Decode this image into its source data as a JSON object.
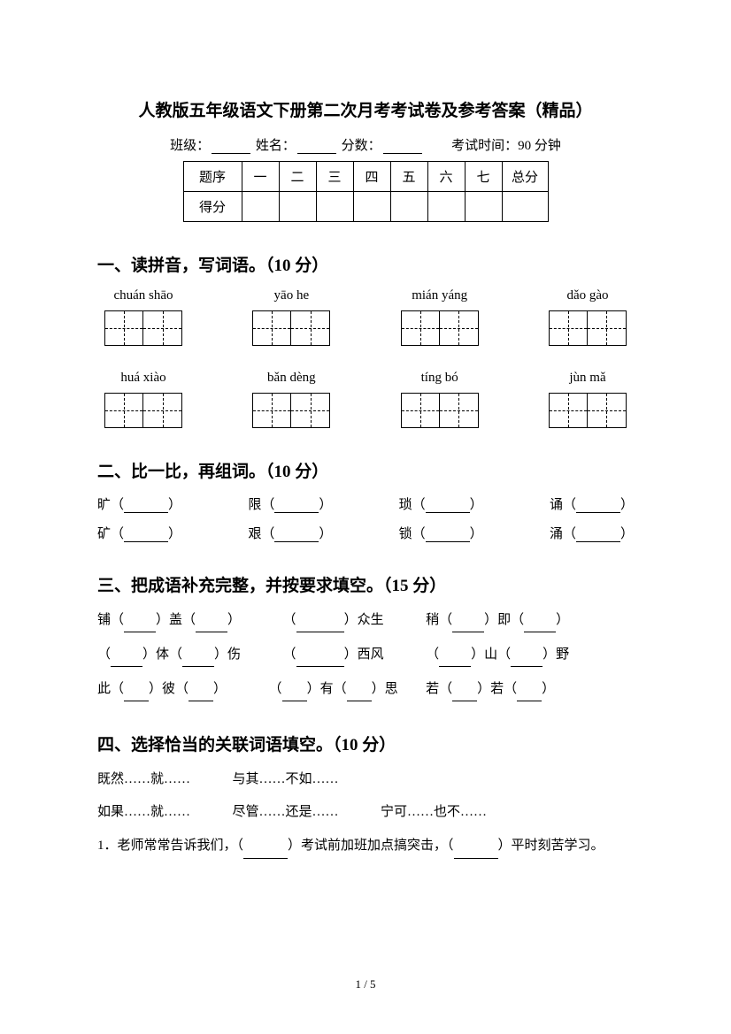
{
  "title": "人教版五年级语文下册第二次月考考试卷及参考答案（精品）",
  "info": {
    "class_label": "班级：",
    "name_label": "姓名：",
    "score_label": "分数：",
    "time_label": "考试时间：90 分钟"
  },
  "score_table": {
    "row1_label": "题序",
    "row2_label": "得分",
    "cols": [
      "一",
      "二",
      "三",
      "四",
      "五",
      "六",
      "七"
    ],
    "total": "总分"
  },
  "section1": {
    "title": "一、读拼音，写词语。（10 分）",
    "row1": [
      "chuán shāo",
      "yāo he",
      "mián yáng",
      "dǎo gào"
    ],
    "row2": [
      "huá xiào",
      "bǎn dèng",
      "tíng bó",
      "jùn mǎ"
    ]
  },
  "section2": {
    "title": "二、比一比，再组词。（10 分）",
    "row1": [
      "旷",
      "限",
      "琐",
      "诵"
    ],
    "row2": [
      "矿",
      "艰",
      "锁",
      "涌"
    ]
  },
  "section3": {
    "title": "三、把成语补充完整，并按要求填空。（15 分）",
    "items": {
      "l1a1": "铺（",
      "l1a2": "）盖（",
      "l1a3": "）",
      "l1b1": "（",
      "l1b2": "）众生",
      "l1c1": "稍（",
      "l1c2": "）即（",
      "l1c3": "）",
      "l2a1": "（",
      "l2a2": "）体（",
      "l2a3": "）伤",
      "l2b1": "（",
      "l2b2": "）西风",
      "l2c1": "（",
      "l2c2": "）山（",
      "l2c3": "）野",
      "l3a1": "此（",
      "l3a2": "）彼（",
      "l3a3": "）",
      "l3b1": "（",
      "l3b2": "）有（",
      "l3b3": "）思",
      "l3c1": "若（",
      "l3c2": "）若（",
      "l3c3": "）"
    }
  },
  "section4": {
    "title": "四、选择恰当的关联词语填空。（10 分）",
    "opts1": [
      "既然……就……",
      "与其……不如……"
    ],
    "opts2": [
      "如果……就……",
      "尽管……还是……",
      "宁可……也不……"
    ],
    "q1": "1．老师常常告诉我们，（",
    "q1m": "）考试前加班加点搞突击，（",
    "q1e": "）平时刻苦学习。"
  },
  "page_num": "1 / 5"
}
